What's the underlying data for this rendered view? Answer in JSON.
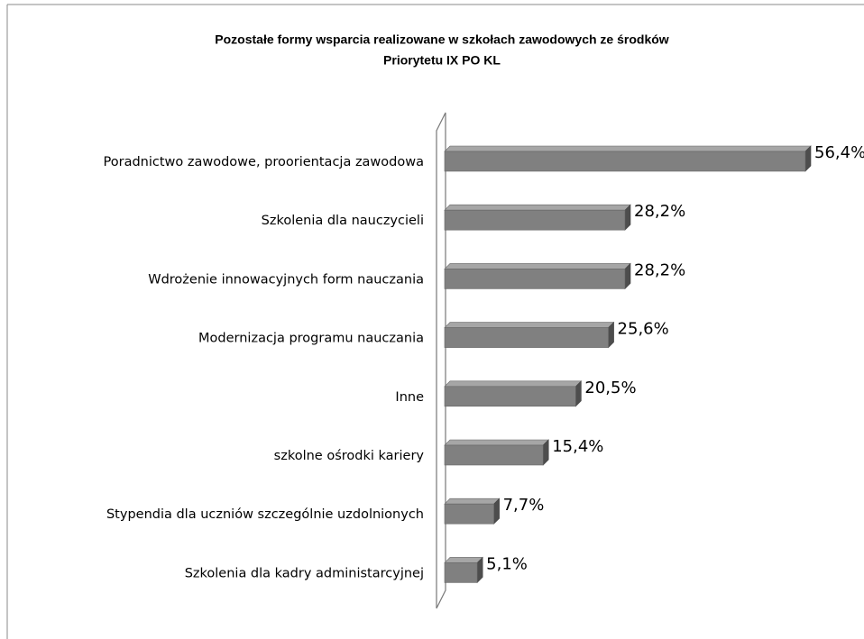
{
  "chart_data": {
    "type": "bar",
    "orientation": "horizontal",
    "title": [
      "Pozostałe formy wsparcia realizowane w szkołach zawodowych ze środków",
      "Priorytetu IX PO KL"
    ],
    "categories": [
      "Poradnictwo zawodowe, proorientacja zawodowa",
      "Szkolenia dla nauczycieli",
      "Wdrożenie innowacyjnych form nauczania",
      "Modernizacja programu nauczania",
      "Inne",
      "szkolne ośrodki kariery",
      "Stypendia dla uczniów szczególnie uzdolnionych",
      "Szkolenia dla kadry administarcyjnej"
    ],
    "values": [
      56.4,
      28.2,
      28.2,
      25.6,
      20.5,
      15.4,
      7.7,
      5.1
    ],
    "value_labels": [
      "56,4%",
      "28,2%",
      "28,2%",
      "25,6%",
      "20,5%",
      "15,4%",
      "7,7%",
      "5,1%"
    ],
    "color": "#808080"
  }
}
